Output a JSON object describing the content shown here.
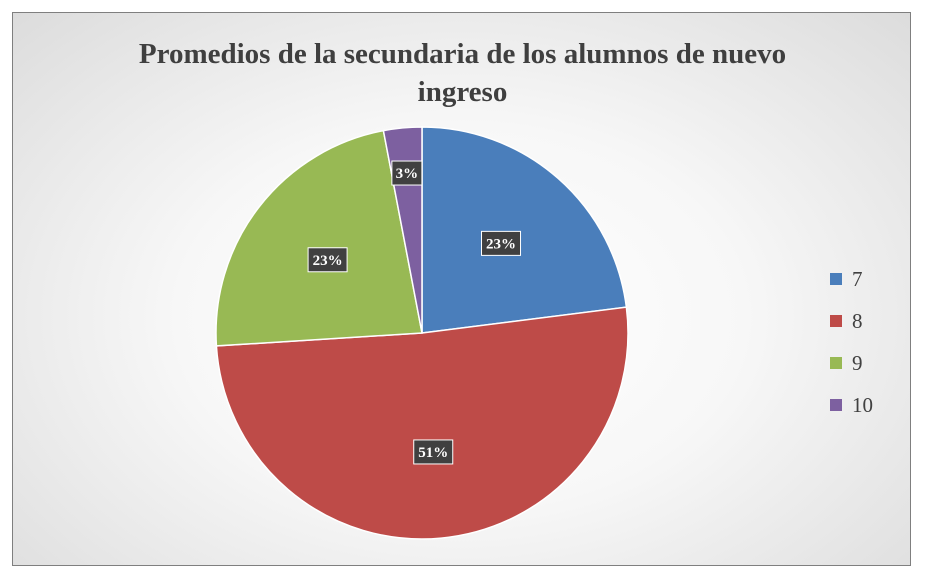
{
  "chart_data": {
    "type": "pie",
    "title_lines": [
      "Promedios de la secundaria de los alumnos de nuevo",
      "ingreso"
    ],
    "categories": [
      "7",
      "8",
      "9",
      "10"
    ],
    "values": [
      23,
      51,
      23,
      3
    ],
    "data_labels": [
      "23%",
      "51%",
      "23%",
      "3%"
    ],
    "colors": [
      "#4a7ebb",
      "#be4b48",
      "#98b954",
      "#7d60a0"
    ],
    "legend_position": "right",
    "start_angle_deg": 0,
    "direction": "clockwise"
  }
}
